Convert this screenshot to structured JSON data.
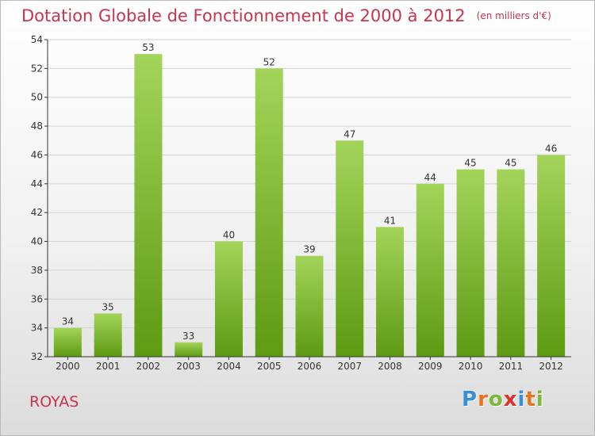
{
  "title": "Dotation Globale de Fonctionnement de 2000 à 2012",
  "subtitle": "(en milliers d'€)",
  "commune": "ROYAS",
  "logo": {
    "letters": [
      "P",
      "r",
      "o",
      "x",
      "i",
      "t",
      "i"
    ],
    "colors": [
      "#3a8fd4",
      "#e8731f",
      "#7cb93a",
      "#d8342a",
      "#3a8fd4",
      "#e8731f",
      "#7cb93a"
    ]
  },
  "colors": {
    "bar_top": "#a3d45a",
    "bar_bottom": "#5e9a12",
    "title": "#c8344d",
    "axis": "#333333",
    "grid": "#d3d3d3"
  },
  "chart_data": {
    "type": "bar",
    "categories": [
      "2000",
      "2001",
      "2002",
      "2003",
      "2004",
      "2005",
      "2006",
      "2007",
      "2008",
      "2009",
      "2010",
      "2011",
      "2012"
    ],
    "values": [
      34,
      35,
      53,
      33,
      40,
      52,
      39,
      47,
      41,
      44,
      45,
      45,
      46
    ],
    "ylim": [
      32,
      54
    ],
    "yticks": [
      32,
      34,
      36,
      38,
      40,
      42,
      44,
      46,
      48,
      50,
      52,
      54
    ],
    "grid": true,
    "data_labels": true
  }
}
